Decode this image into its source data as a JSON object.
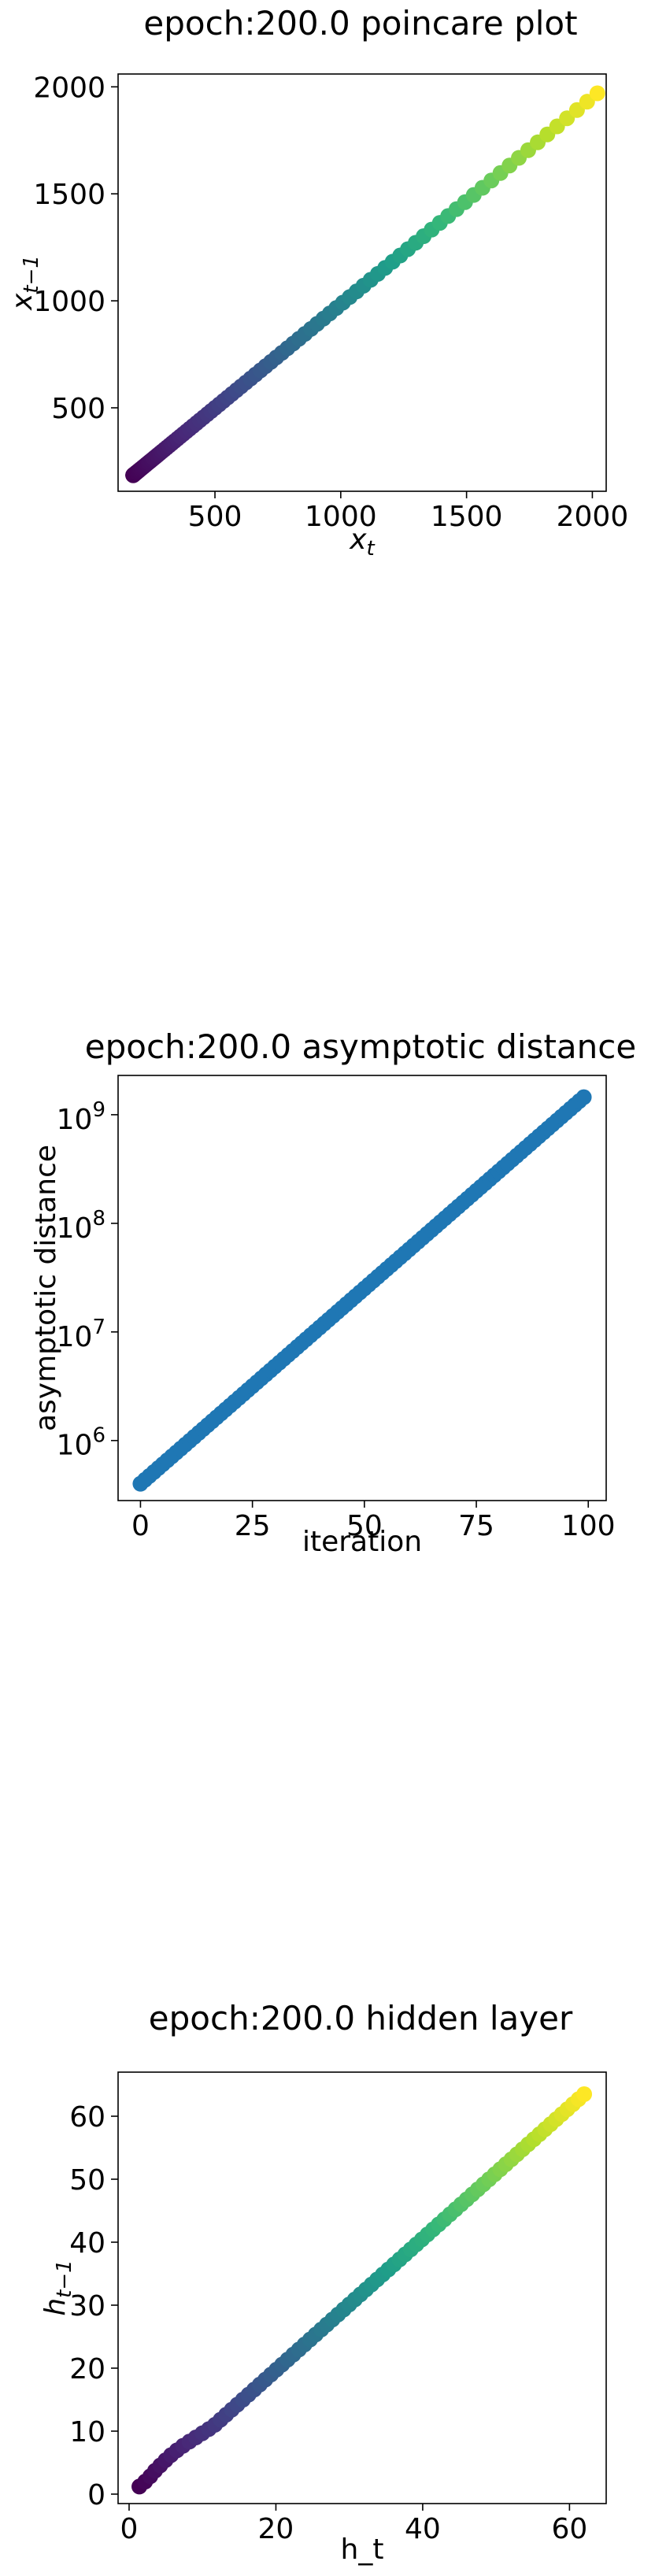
{
  "chart_data": [
    {
      "type": "scatter",
      "title": "epoch:200.0 poincare plot",
      "xlabel": "x",
      "xlabel_sub": "t",
      "ylabel": "x",
      "ylabel_sub": "t−1",
      "xlim": [
        115,
        2055
      ],
      "ylim": [
        110,
        2060
      ],
      "xticks": [
        500,
        1000,
        1500,
        2000
      ],
      "yticks": [
        500,
        1000,
        1500,
        2000
      ],
      "colormap": "viridis",
      "series": [
        {
          "x_start": 175,
          "x_end": 2020,
          "y_start": 185,
          "y_end": 1970,
          "n_points": 100
        }
      ],
      "grid": false,
      "legend": "none"
    },
    {
      "type": "scatter",
      "title": "epoch:200.0 asymptotic distance",
      "xlabel": "iteration",
      "ylabel": "asymptotic distance",
      "xscale": "linear",
      "yscale": "log",
      "xlim": [
        -5,
        104
      ],
      "ylim": [
        280000,
        2300000000
      ],
      "xticks": [
        0,
        25,
        50,
        75,
        100
      ],
      "yticks": [
        {
          "value": 1000000,
          "base": "10",
          "exp": "6"
        },
        {
          "value": 10000000,
          "base": "10",
          "exp": "7"
        },
        {
          "value": 100000000,
          "base": "10",
          "exp": "8"
        },
        {
          "value": 1000000000,
          "base": "10",
          "exp": "9"
        }
      ],
      "color": "#1f77b4",
      "series": [
        {
          "x_start": 0,
          "x_end": 99,
          "y_start": 400000,
          "y_end": 1450000000,
          "n_points": 100
        }
      ],
      "grid": false,
      "legend": "none"
    },
    {
      "type": "scatter",
      "title": "epoch:200.0 hidden layer",
      "xlabel": "h_t",
      "ylabel": "h",
      "ylabel_sub": "t−1",
      "xlim": [
        -1.5,
        65
      ],
      "ylim": [
        -1.5,
        67
      ],
      "xticks": [
        0,
        20,
        40,
        60
      ],
      "yticks": [
        0,
        10,
        20,
        30,
        40,
        50,
        60
      ],
      "colormap": "viridis",
      "series": [
        {
          "points": [
            [
              1.4,
              1.2
            ],
            [
              2.5,
              2.3
            ],
            [
              3.6,
              3.8
            ],
            [
              4.8,
              5.2
            ],
            [
              6.0,
              6.5
            ],
            [
              7.5,
              7.8
            ],
            [
              9.5,
              9.3
            ],
            [
              11.5,
              10.8
            ],
            [
              13.5,
              12.9
            ],
            [
              62,
              63.5
            ]
          ],
          "n_points": 80
        }
      ],
      "grid": false,
      "legend": "none"
    }
  ]
}
